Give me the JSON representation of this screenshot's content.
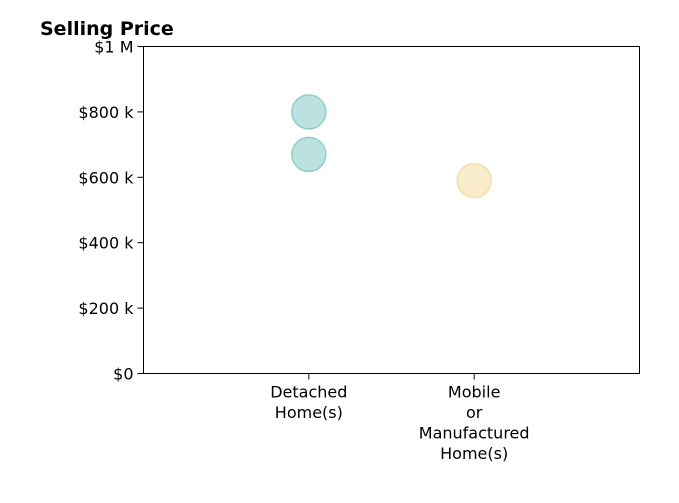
{
  "chart_data": {
    "type": "scatter",
    "title": "Selling Price",
    "xlabel": "",
    "ylabel": "",
    "categories": [
      "Detached\nHome(s)",
      "Mobile\nor\nManufactured\nHome(s)"
    ],
    "y_ticks": [
      {
        "value": 0,
        "label": "$0"
      },
      {
        "value": 200000,
        "label": "$200 k"
      },
      {
        "value": 400000,
        "label": "$400 k"
      },
      {
        "value": 600000,
        "label": "$600 k"
      },
      {
        "value": 800000,
        "label": "$800 k"
      },
      {
        "value": 1000000,
        "label": "$1 M"
      }
    ],
    "ylim": [
      0,
      1000000
    ],
    "xlim": [
      -1,
      2
    ],
    "grid": false,
    "series": [
      {
        "category_index": 0,
        "values": [
          800000,
          670000
        ],
        "color": "#8ecfc9"
      },
      {
        "category_index": 1,
        "values": [
          590000
        ],
        "color": "#f4dfa8"
      }
    ]
  }
}
